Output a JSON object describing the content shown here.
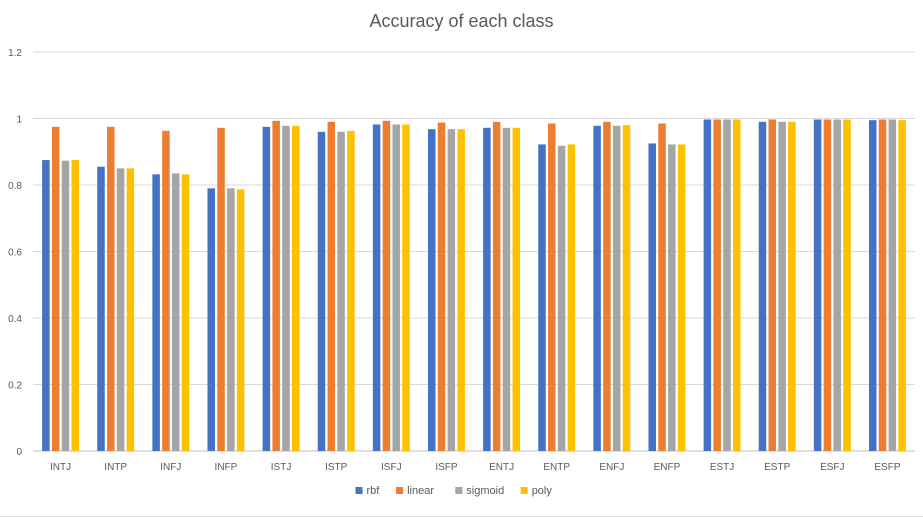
{
  "chart_data": {
    "type": "bar",
    "title": "Accuracy of each class",
    "xlabel": "",
    "ylabel": "",
    "ylim": [
      0,
      1.2
    ],
    "yticks": [
      "0",
      "0.2",
      "0.4",
      "0.6",
      "0.8",
      "1",
      "1.2"
    ],
    "grid": true,
    "legend_position": "bottom",
    "categories": [
      "INTJ",
      "INTP",
      "INFJ",
      "INFP",
      "ISTJ",
      "ISTP",
      "ISFJ",
      "ISFP",
      "ENTJ",
      "ENTP",
      "ENFJ",
      "ENFP",
      "ESTJ",
      "ESTP",
      "ESFJ",
      "ESFP"
    ],
    "series": [
      {
        "name": "rbf",
        "color": "#4472C4",
        "values": [
          0.875,
          0.855,
          0.832,
          0.79,
          0.975,
          0.96,
          0.982,
          0.968,
          0.972,
          0.922,
          0.978,
          0.925,
          0.997,
          0.99,
          0.997,
          0.995
        ]
      },
      {
        "name": "linear",
        "color": "#ED7D31",
        "values": [
          0.975,
          0.975,
          0.963,
          0.972,
          0.993,
          0.99,
          0.993,
          0.988,
          0.99,
          0.985,
          0.99,
          0.985,
          0.997,
          0.997,
          0.997,
          0.997
        ]
      },
      {
        "name": "sigmoid",
        "color": "#A5A5A5",
        "values": [
          0.873,
          0.85,
          0.835,
          0.79,
          0.978,
          0.96,
          0.982,
          0.968,
          0.972,
          0.918,
          0.978,
          0.922,
          0.997,
          0.99,
          0.997,
          0.997
        ]
      },
      {
        "name": "poly",
        "color": "#FFC000",
        "values": [
          0.875,
          0.85,
          0.832,
          0.787,
          0.978,
          0.963,
          0.982,
          0.968,
          0.972,
          0.922,
          0.98,
          0.922,
          0.997,
          0.99,
          0.997,
          0.995
        ]
      }
    ]
  }
}
